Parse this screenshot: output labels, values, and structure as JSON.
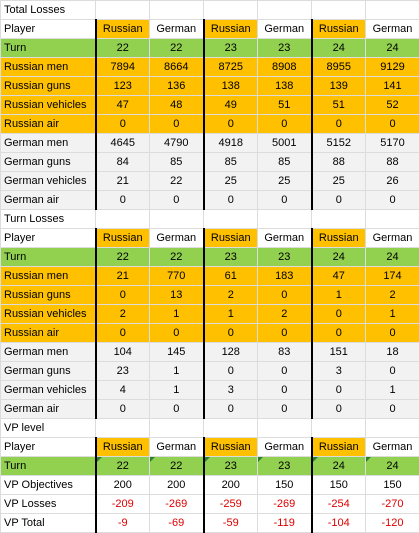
{
  "sections": [
    {
      "title": "Total Losses",
      "header": {
        "label": "Player",
        "cols": [
          "Russian",
          "German",
          "Russian",
          "German",
          "Russian",
          "German"
        ]
      },
      "turn": {
        "label": "Turn",
        "cols": [
          "22",
          "22",
          "23",
          "23",
          "24",
          "24"
        ]
      },
      "russian_rows": [
        {
          "label": "Russian men",
          "cols": [
            "7894",
            "8664",
            "8725",
            "8908",
            "8955",
            "9129"
          ]
        },
        {
          "label": "Russian guns",
          "cols": [
            "123",
            "136",
            "138",
            "138",
            "139",
            "141"
          ]
        },
        {
          "label": "Russian vehicles",
          "cols": [
            "47",
            "48",
            "49",
            "51",
            "51",
            "52"
          ]
        },
        {
          "label": "Russian air",
          "cols": [
            "0",
            "0",
            "0",
            "0",
            "0",
            "0"
          ]
        }
      ],
      "german_rows": [
        {
          "label": "German men",
          "cols": [
            "4645",
            "4790",
            "4918",
            "5001",
            "5152",
            "5170"
          ]
        },
        {
          "label": "German guns",
          "cols": [
            "84",
            "85",
            "85",
            "85",
            "88",
            "88"
          ]
        },
        {
          "label": "German vehicles",
          "cols": [
            "21",
            "22",
            "25",
            "25",
            "25",
            "26"
          ]
        },
        {
          "label": "German air",
          "cols": [
            "0",
            "0",
            "0",
            "0",
            "0",
            "0"
          ]
        }
      ]
    },
    {
      "title": "Turn Losses",
      "header": {
        "label": "Player",
        "cols": [
          "Russian",
          "German",
          "Russian",
          "German",
          "Russian",
          "German"
        ]
      },
      "turn": {
        "label": "Turn",
        "cols": [
          "22",
          "22",
          "23",
          "23",
          "24",
          "24"
        ]
      },
      "russian_rows": [
        {
          "label": "Russian men",
          "cols": [
            "21",
            "770",
            "61",
            "183",
            "47",
            "174"
          ]
        },
        {
          "label": "Russian guns",
          "cols": [
            "0",
            "13",
            "2",
            "0",
            "1",
            "2"
          ]
        },
        {
          "label": "Russian vehicles",
          "cols": [
            "2",
            "1",
            "1",
            "2",
            "0",
            "1"
          ]
        },
        {
          "label": "Russian air",
          "cols": [
            "0",
            "0",
            "0",
            "0",
            "0",
            "0"
          ]
        }
      ],
      "german_rows": [
        {
          "label": "German men",
          "cols": [
            "104",
            "145",
            "128",
            "83",
            "151",
            "18"
          ]
        },
        {
          "label": "German guns",
          "cols": [
            "23",
            "1",
            "0",
            "0",
            "3",
            "0"
          ]
        },
        {
          "label": "German vehicles",
          "cols": [
            "4",
            "1",
            "3",
            "0",
            "0",
            "1"
          ]
        },
        {
          "label": "German air",
          "cols": [
            "0",
            "0",
            "0",
            "0",
            "0",
            "0"
          ]
        }
      ]
    }
  ],
  "vp": {
    "title": "VP level",
    "header": {
      "label": "Player",
      "cols": [
        "Russian",
        "German",
        "Russian",
        "German",
        "Russian",
        "German"
      ]
    },
    "turn": {
      "label": "Turn",
      "cols": [
        "22",
        "22",
        "23",
        "23",
        "24",
        "24"
      ]
    },
    "rows": [
      {
        "label": "VP Objectives",
        "cols": [
          "200",
          "200",
          "200",
          "150",
          "150",
          "150"
        ]
      },
      {
        "label": "VP Losses",
        "cols": [
          "-209",
          "-269",
          "-259",
          "-269",
          "-254",
          "-270"
        ]
      },
      {
        "label": "VP Total",
        "cols": [
          "-9",
          "-69",
          "-59",
          "-119",
          "-104",
          "-120"
        ]
      }
    ]
  },
  "colors": {
    "russian": "#ffc000",
    "turn": "#92d050",
    "german_row": "#f2f2f2",
    "negative": "#e00000"
  }
}
